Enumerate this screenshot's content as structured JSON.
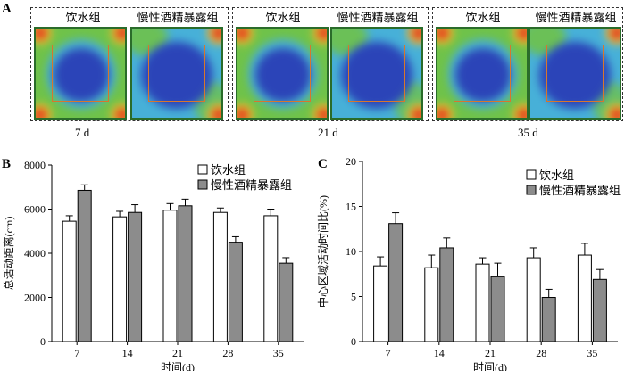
{
  "panel_a": {
    "letter": "A",
    "heatmaps": [
      {
        "title": "饮水组",
        "style": "water_7"
      },
      {
        "title": "慢性酒精暴露组",
        "style": "alc_7"
      },
      {
        "title": "饮水组",
        "style": "water_21"
      },
      {
        "title": "慢性酒精暴露组",
        "style": "alc_21"
      },
      {
        "title": "饮水组",
        "style": "water_35"
      },
      {
        "title": "慢性酒精暴露组",
        "style": "alc_35"
      }
    ],
    "day_labels": [
      "7 d",
      "21 d",
      "35 d"
    ],
    "colors": {
      "outer": "#6fc24a",
      "mid": "#47b0d8",
      "inner": "#2a3fb7",
      "hot": "#e53a1e",
      "warm": "#f0d030"
    }
  },
  "chart_data": [
    {
      "panel": "B",
      "type": "bar",
      "categories": [
        "7",
        "14",
        "21",
        "28",
        "35"
      ],
      "series": [
        {
          "name": "饮水组",
          "values": [
            5450,
            5650,
            5950,
            5850,
            5700
          ],
          "errors": [
            250,
            250,
            300,
            200,
            300
          ],
          "color": "#ffffff"
        },
        {
          "name": "慢性酒精暴露组",
          "values": [
            6850,
            5850,
            6150,
            4500,
            3550
          ],
          "errors": [
            250,
            350,
            300,
            250,
            250
          ],
          "color": "#8c8c8c"
        }
      ],
      "xlabel": "时间(d)",
      "ylabel": "总活动距离(cm)",
      "ylim": [
        0,
        8000
      ],
      "yticks": [
        0,
        2000,
        4000,
        6000,
        8000
      ],
      "grid": false,
      "legend": "top-right"
    },
    {
      "panel": "C",
      "type": "bar",
      "categories": [
        "7",
        "14",
        "21",
        "28",
        "35"
      ],
      "series": [
        {
          "name": "饮水组",
          "values": [
            8.4,
            8.2,
            8.6,
            9.3,
            9.6
          ],
          "errors": [
            1.0,
            1.4,
            0.7,
            1.1,
            1.3
          ],
          "color": "#ffffff"
        },
        {
          "name": "慢性酒精暴露组",
          "values": [
            13.1,
            10.4,
            7.2,
            4.9,
            6.9
          ],
          "errors": [
            1.2,
            1.1,
            1.5,
            0.9,
            1.1
          ],
          "color": "#8c8c8c"
        }
      ],
      "xlabel": "时间(d)",
      "ylabel": "中心区域活动时间比(%)",
      "ylim": [
        0,
        20
      ],
      "yticks": [
        0,
        5,
        10,
        15,
        20
      ],
      "grid": false,
      "legend": "top-right"
    }
  ]
}
